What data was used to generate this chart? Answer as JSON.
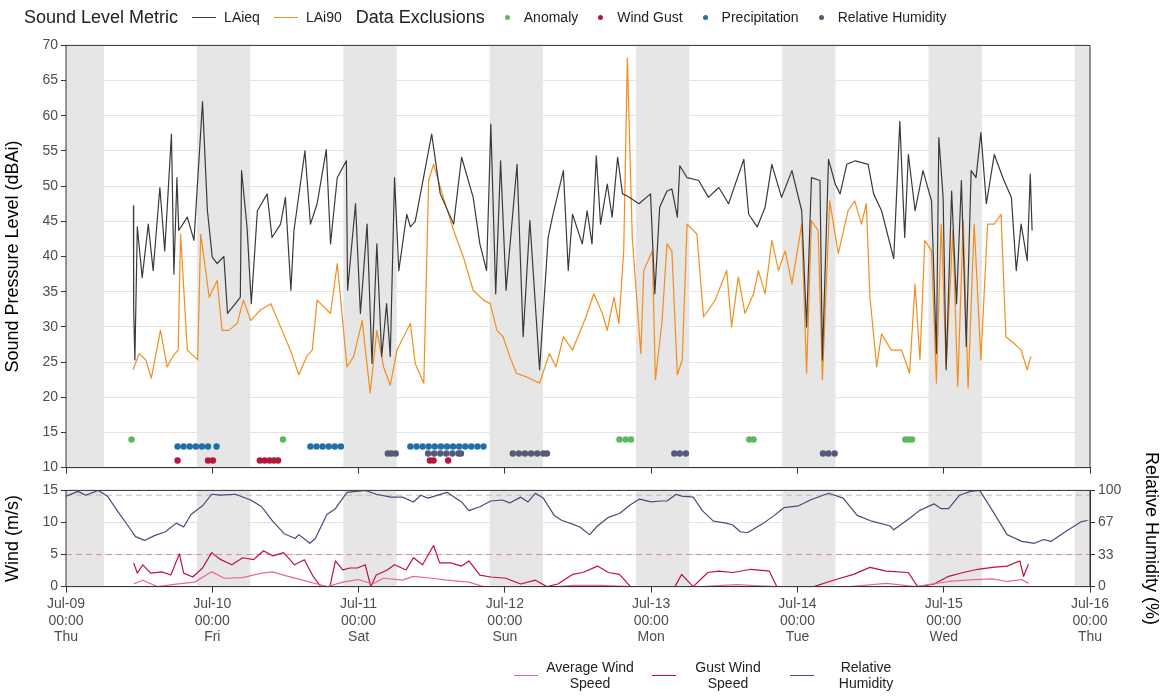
{
  "chart_data": [
    {
      "type": "line",
      "ylabel": "Sound Pressure Level (dBAi)",
      "legend_title": "Sound Level Metric",
      "annotations": [
        "Data Exclusions"
      ],
      "legend": "top",
      "grid": "y",
      "tick_labels": "y",
      "marker": "none",
      "xlim": [
        "--07-09",
        "--07-16"
      ],
      "xticks": [
        {
          "value": "--07-09",
          "label": null
        },
        {
          "value": "--07-10",
          "label": null
        },
        {
          "value": "--07-11",
          "label": null
        },
        {
          "value": "--07-12",
          "label": null
        },
        {
          "value": "--07-13",
          "label": null
        },
        {
          "value": "--07-14",
          "label": null
        },
        {
          "value": "--07-15",
          "label": null
        },
        {
          "value": "--07-16",
          "label": null
        }
      ],
      "ylim": [
        10,
        70
      ],
      "yticks": [
        10,
        15,
        20,
        25,
        30,
        35,
        40,
        45,
        50,
        55,
        60,
        65,
        70
      ],
      "bands": [
        {
          "axis": "x",
          "from": "--07-09T00:00",
          "to": "--07-09T06:15",
          "color": "#e6e6e6"
        },
        {
          "axis": "x",
          "from": "--07-09T21:30",
          "to": "--07-10T06:15",
          "color": "#e6e6e6"
        },
        {
          "axis": "x",
          "from": "--07-10T21:30",
          "to": "--07-11T06:15",
          "color": "#e6e6e6"
        },
        {
          "axis": "x",
          "from": "--07-11T21:30",
          "to": "--07-12T06:15",
          "color": "#e6e6e6"
        },
        {
          "axis": "x",
          "from": "--07-12T21:30",
          "to": "--07-13T06:15",
          "color": "#e6e6e6"
        },
        {
          "axis": "x",
          "from": "--07-13T21:30",
          "to": "--07-14T06:15",
          "color": "#e6e6e6"
        },
        {
          "axis": "x",
          "from": "--07-14T21:30",
          "to": "--07-15T06:15",
          "color": "#e6e6e6"
        },
        {
          "axis": "x",
          "from": "--07-15T21:30",
          "to": "--07-16T00:00",
          "color": "#e6e6e6"
        }
      ],
      "series": [
        {
          "name": "LAieq",
          "type": "line",
          "color": "#3a3a3a",
          "x": [
            "--07-09T11:04",
            "--07-09T11:06",
            "--07-09T11:18",
            "--07-09T11:42",
            "--07-09T12:30",
            "--07-09T13:30",
            "--07-09T14:18",
            "--07-09T15:24",
            "--07-09T16:12",
            "--07-09T17:18",
            "--07-09T17:42",
            "--07-09T18:12",
            "--07-09T18:30",
            "--07-09T19:54",
            "--07-09T21:00",
            "--07-09T22:24",
            "--07-09T23:12",
            "--07-10T00:00",
            "--07-10T00:48",
            "--07-10T01:54",
            "--07-10T02:30",
            "--07-10T04:36",
            "--07-10T04:48",
            "--07-10T05:42",
            "--07-10T06:24",
            "--07-10T07:24",
            "--07-10T09:00",
            "--07-10T09:48",
            "--07-10T11:12",
            "--07-10T12:00",
            "--07-10T12:54",
            "--07-10T13:24",
            "--07-10T15:12",
            "--07-10T16:06",
            "--07-10T17:12",
            "--07-10T18:42",
            "--07-10T19:24",
            "--07-10T20:30",
            "--07-10T22:00",
            "--07-10T22:12",
            "--07-10T23:30",
            "--07-11T00:18",
            "--07-11T01:24",
            "--07-11T02:12",
            "--07-11T03:00",
            "--07-11T03:48",
            "--07-11T04:36",
            "--07-11T05:12",
            "--07-11T05:54",
            "--07-11T06:36",
            "--07-11T07:54",
            "--07-11T08:30",
            "--07-11T09:18",
            "--07-11T12:00",
            "--07-11T13:24",
            "--07-11T15:36",
            "--07-11T16:54",
            "--07-11T18:48",
            "--07-11T19:54",
            "--07-11T21:00",
            "--07-11T21:42",
            "--07-11T22:30",
            "--07-11T23:18",
            "--07-12T00:12",
            "--07-12T02:00",
            "--07-12T03:00",
            "--07-12T04:06",
            "--07-12T05:42",
            "--07-12T07:06",
            "--07-12T07:48",
            "--07-12T09:36",
            "--07-12T10:24",
            "--07-12T11:06",
            "--07-12T12:42",
            "--07-12T13:30",
            "--07-12T14:18",
            "--07-12T15:00",
            "--07-12T15:42",
            "--07-12T16:48",
            "--07-12T17:36",
            "--07-12T18:30",
            "--07-12T19:18",
            "--07-12T20:06",
            "--07-12T22:00",
            "--07-12T23:54",
            "--07-13T00:36",
            "--07-13T01:24",
            "--07-13T02:36",
            "--07-13T03:24",
            "--07-13T04:18",
            "--07-13T04:42",
            "--07-13T05:54",
            "--07-13T07:48",
            "--07-13T09:24",
            "--07-13T11:06",
            "--07-13T12:42",
            "--07-13T15:12",
            "--07-13T16:00",
            "--07-13T17:24",
            "--07-13T18:42",
            "--07-13T19:48",
            "--07-13T21:24",
            "--07-13T23:06",
            "--07-14T00:42",
            "--07-14T01:30",
            "--07-14T02:18",
            "--07-14T03:42",
            "--07-14T04:06",
            "--07-14T05:06",
            "--07-14T06:12",
            "--07-14T07:00",
            "--07-14T08:06",
            "--07-14T09:30",
            "--07-14T11:36",
            "--07-14T12:30",
            "--07-14T13:48",
            "--07-14T15:48",
            "--07-14T16:48",
            "--07-14T17:36",
            "--07-14T18:12",
            "--07-14T19:18",
            "--07-14T20:36",
            "--07-14T22:00",
            "--07-14T22:48",
            "--07-14T23:12",
            "--07-14T23:54",
            "--07-15T00:24",
            "--07-15T01:18",
            "--07-15T02:06",
            "--07-15T02:54",
            "--07-15T03:42",
            "--07-15T04:30",
            "--07-15T05:18",
            "--07-15T06:06",
            "--07-15T07:00",
            "--07-15T08:18",
            "--07-15T09:42",
            "--07-15T11:06",
            "--07-15T11:54",
            "--07-15T12:42",
            "--07-15T13:42",
            "--07-15T14:12",
            "--07-15T14:30"
          ],
          "values": [
            47.2,
            32.6,
            25.3,
            44.2,
            37,
            44.6,
            38,
            49.8,
            40.8,
            57.4,
            37.5,
            51.2,
            43.7,
            45.6,
            42.3,
            62,
            46.5,
            39.9,
            39,
            40,
            31.9,
            34.2,
            52.2,
            44.2,
            33.3,
            46.5,
            48.9,
            42.7,
            44.6,
            48.4,
            35.2,
            43.7,
            55,
            44.6,
            47.5,
            55.2,
            41.8,
            51.2,
            53.6,
            35.2,
            47.5,
            31.9,
            44.6,
            24.8,
            41.8,
            25.8,
            33.3,
            25.8,
            51.2,
            38,
            46,
            44.2,
            45,
            57.4,
            48.9,
            44.6,
            54.1,
            48.4,
            41.8,
            38,
            58.8,
            34.7,
            53.6,
            35.2,
            53.1,
            28.6,
            45.1,
            23.9,
            42.7,
            45.6,
            52.2,
            38,
            46,
            41.8,
            46.5,
            41.8,
            54.3,
            44.6,
            50.3,
            45.6,
            54.1,
            48.9,
            48.6,
            47.5,
            48.9,
            34.7,
            47,
            49.3,
            49.6,
            45.6,
            52.9,
            51.2,
            50.8,
            48.4,
            49.8,
            47.5,
            53.8,
            46,
            44.2,
            47,
            53.1,
            48.4,
            52.2,
            46.5,
            30,
            51.2,
            50.8,
            25.3,
            53.8,
            50.3,
            48.9,
            53.1,
            53.6,
            53.1,
            48.9,
            46.5,
            39.7,
            59.2,
            42.7,
            54.5,
            46.5,
            52.2,
            47.9,
            26.2,
            56.9,
            48.4,
            23.9,
            49.3,
            33.3,
            50.8,
            27.2,
            52.2,
            51.2,
            57.6,
            47.5,
            54.5,
            51.2,
            48.4,
            38,
            44.6,
            39.4,
            51.7,
            43.7
          ]
        },
        {
          "name": "LAi90",
          "type": "line",
          "color": "#f28e1c",
          "x": [
            "--07-09T11:00",
            "--07-09T12:00",
            "--07-09T13:06",
            "--07-09T14:00",
            "--07-09T15:30",
            "--07-09T16:36",
            "--07-09T17:30",
            "--07-09T18:24",
            "--07-09T18:48",
            "--07-09T19:54",
            "--07-09T21:36",
            "--07-09T22:06",
            "--07-09T23:30",
            "--07-10T00:48",
            "--07-10T01:36",
            "--07-10T02:42",
            "--07-10T04:06",
            "--07-10T05:06",
            "--07-10T06:18",
            "--07-10T07:54",
            "--07-10T09:36",
            "--07-10T11:12",
            "--07-10T12:48",
            "--07-10T14:12",
            "--07-10T15:30",
            "--07-10T16:24",
            "--07-10T17:12",
            "--07-10T19:24",
            "--07-10T20:30",
            "--07-10T22:06",
            "--07-10T23:12",
            "--07-11T00:36",
            "--07-11T01:54",
            "--07-11T03:00",
            "--07-11T04:06",
            "--07-11T05:12",
            "--07-11T06:18",
            "--07-11T08:30",
            "--07-11T09:18",
            "--07-11T10:42",
            "--07-11T11:30",
            "--07-11T12:18",
            "--07-11T13:54",
            "--07-11T15:36",
            "--07-11T17:12",
            "--07-11T18:48",
            "--07-11T20:30",
            "--07-11T21:36",
            "--07-11T22:42",
            "--07-11T23:42",
            "--07-12T00:48",
            "--07-12T01:54",
            "--07-12T03:30",
            "--07-12T05:42",
            "--07-12T07:18",
            "--07-12T08:24",
            "--07-12T09:36",
            "--07-12T11:06",
            "--07-12T13:18",
            "--07-12T14:36",
            "--07-12T16:00",
            "--07-12T16:48",
            "--07-12T17:54",
            "--07-12T18:42",
            "--07-12T19:30",
            "--07-12T20:06",
            "--07-12T20:54",
            "--07-12T22:18",
            "--07-12T22:48",
            "--07-13T00:12",
            "--07-13T00:42",
            "--07-13T01:48",
            "--07-13T02:36",
            "--07-13T03:24",
            "--07-13T04:18",
            "--07-13T05:06",
            "--07-13T05:54",
            "--07-13T07:30",
            "--07-13T08:36",
            "--07-13T10:30",
            "--07-13T12:24",
            "--07-13T13:12",
            "--07-13T14:18",
            "--07-13T15:24",
            "--07-13T16:48",
            "--07-13T17:36",
            "--07-13T18:42",
            "--07-13T19:48",
            "--07-13T20:54",
            "--07-13T22:00",
            "--07-13T23:06",
            "--07-14T00:42",
            "--07-14T01:30",
            "--07-14T02:18",
            "--07-14T03:24",
            "--07-14T04:06",
            "--07-14T05:18",
            "--07-14T06:42",
            "--07-14T08:18",
            "--07-14T09:24",
            "--07-14T10:30",
            "--07-14T11:18",
            "--07-14T11:54",
            "--07-14T13:00",
            "--07-14T13:48",
            "--07-14T15:24",
            "--07-14T17:06",
            "--07-14T18:24",
            "--07-14T19:18",
            "--07-14T20:06",
            "--07-14T20:54",
            "--07-14T22:00",
            "--07-14T22:48",
            "--07-14T23:36",
            "--07-15T00:24",
            "--07-15T01:30",
            "--07-15T02:18",
            "--07-15T03:12",
            "--07-15T04:00",
            "--07-15T05:00",
            "--07-15T06:06",
            "--07-15T07:12",
            "--07-15T08:18",
            "--07-15T09:24",
            "--07-15T10:12",
            "--07-15T11:36",
            "--07-15T12:42",
            "--07-15T13:42",
            "--07-15T14:18"
          ],
          "values": [
            23.9,
            26.2,
            25.3,
            22.7,
            29.5,
            24.3,
            25.8,
            26.7,
            43.2,
            26.7,
            25.3,
            43.2,
            34.2,
            36.6,
            29.5,
            29.5,
            30.5,
            33.8,
            30.9,
            32.4,
            33.3,
            30,
            26.7,
            23.2,
            25.8,
            26.7,
            33.8,
            31.9,
            39,
            24.3,
            25.8,
            30.9,
            20.6,
            29.5,
            24.3,
            21.7,
            26.7,
            30.5,
            24.8,
            22,
            50.8,
            53.1,
            48.4,
            43.7,
            39.9,
            35.2,
            33.8,
            33.3,
            29.5,
            28.6,
            25.8,
            23.4,
            22.9,
            22,
            26.2,
            24.3,
            28.6,
            26.7,
            31.4,
            34.7,
            31.9,
            29.5,
            34.2,
            30.5,
            40.8,
            68.2,
            42.7,
            26.2,
            38,
            40.8,
            22.5,
            30.9,
            41.8,
            40.8,
            23.2,
            25.3,
            44.6,
            43.2,
            31.4,
            33.8,
            38,
            30,
            37.1,
            31.9,
            34.7,
            38,
            34.7,
            42.3,
            38,
            40.8,
            36.1,
            44.6,
            23.4,
            45.1,
            43.7,
            22.5,
            47.9,
            40.4,
            46.5,
            47.9,
            44.6,
            47.5,
            34.2,
            24.3,
            29,
            26.7,
            26.7,
            23.4,
            36.1,
            25.3,
            42.3,
            40.8,
            22,
            44.6,
            24.3,
            43.7,
            21.5,
            45.1,
            21.3,
            44.6,
            25.3,
            44.6,
            44.6,
            46,
            28.6,
            27.6,
            26.7,
            23.9,
            25.8
          ]
        },
        {
          "name": "Anomaly",
          "type": "scatter",
          "marker": "circle",
          "color": "#5cb85c",
          "x": [
            "--07-09T10:45",
            "--07-10T11:36",
            "--07-12T18:48",
            "--07-12T19:48",
            "--07-12T20:42",
            "--07-13T16:06",
            "--07-13T16:48",
            "--07-14T17:42",
            "--07-14T18:18",
            "--07-14T18:48"
          ],
          "values": [
            14,
            14,
            14,
            14,
            14,
            14,
            14,
            14,
            14,
            14
          ]
        },
        {
          "name": "Wind Gust",
          "type": "scatter",
          "marker": "circle",
          "color": "#b5173d",
          "x": [
            "--07-09T18:18",
            "--07-09T23:18",
            "--07-10T00:06",
            "--07-10T07:48",
            "--07-10T08:36",
            "--07-10T09:24",
            "--07-10T10:06",
            "--07-10T10:48",
            "--07-11T11:42",
            "--07-11T12:18",
            "--07-11T14:42"
          ],
          "values": [
            11,
            11,
            11,
            11,
            11,
            11,
            11,
            11,
            11,
            11,
            11
          ]
        },
        {
          "name": "Precipitation",
          "type": "scatter",
          "marker": "circle",
          "color": "#1f6fa8",
          "x": [
            "--07-09T18:18",
            "--07-09T19:18",
            "--07-09T20:18",
            "--07-09T21:18",
            "--07-09T22:18",
            "--07-09T23:18",
            "--07-10T00:42",
            "--07-10T16:06",
            "--07-10T17:06",
            "--07-10T18:06",
            "--07-10T19:06",
            "--07-10T20:06",
            "--07-10T21:06",
            "--07-11T08:30",
            "--07-11T09:30",
            "--07-11T10:30",
            "--07-11T11:30",
            "--07-11T12:30",
            "--07-11T13:30",
            "--07-11T14:30",
            "--07-11T15:30",
            "--07-11T16:30",
            "--07-11T17:30",
            "--07-11T18:30",
            "--07-11T19:30",
            "--07-11T20:30"
          ],
          "values": [
            13,
            13,
            13,
            13,
            13,
            13,
            13,
            13,
            13,
            13,
            13,
            13,
            13,
            13,
            13,
            13,
            13,
            13,
            13,
            13,
            13,
            13,
            13,
            13,
            13,
            13
          ]
        },
        {
          "name": "Relative Humidity",
          "type": "scatter",
          "marker": "circle",
          "color": "#555a78",
          "x": [
            "--07-11T04:48",
            "--07-11T05:24",
            "--07-11T06:06",
            "--07-11T11:24",
            "--07-11T12:24",
            "--07-11T13:24",
            "--07-11T14:24",
            "--07-11T15:24",
            "--07-11T16:24",
            "--07-11T16:48",
            "--07-12T01:18",
            "--07-12T02:18",
            "--07-12T03:18",
            "--07-12T04:18",
            "--07-12T05:18",
            "--07-12T06:18",
            "--07-12T06:54",
            "--07-13T03:48",
            "--07-13T04:42",
            "--07-13T05:42",
            "--07-14T04:12",
            "--07-14T05:06",
            "--07-14T06:06"
          ],
          "values": [
            12,
            12,
            12,
            12,
            12,
            12,
            12,
            12,
            12,
            12,
            12,
            12,
            12,
            12,
            12,
            12,
            12,
            12,
            12,
            12,
            12,
            12,
            12
          ]
        }
      ]
    },
    {
      "type": "line",
      "ylabel": "Wind (m/s)",
      "y2label": "Relative Humidity (%)",
      "legend": "bottom",
      "grid": "y",
      "marker": "none",
      "xlim": [
        "--07-09",
        "--07-16"
      ],
      "xticks": [
        {
          "value": "--07-09",
          "label": "Jul-09\n00:00\nThu"
        },
        {
          "value": "--07-10",
          "label": "Jul-10\n00:00\nFri"
        },
        {
          "value": "--07-11",
          "label": "Jul-11\n00:00\nSat"
        },
        {
          "value": "--07-12",
          "label": "Jul-12\n00:00\nSun"
        },
        {
          "value": "--07-13",
          "label": "Jul-13\n00:00\nMon"
        },
        {
          "value": "--07-14",
          "label": "Jul-14\n00:00\nTue"
        },
        {
          "value": "--07-15",
          "label": "Jul-15\n00:00\nWed"
        },
        {
          "value": "--07-16",
          "label": "Jul-16\n00:00\nThu"
        }
      ],
      "ylim": [
        0,
        15
      ],
      "yticks": [
        0,
        5,
        10,
        15
      ],
      "y2lim": [
        0,
        100
      ],
      "y2ticks": [
        0,
        33,
        67,
        100
      ],
      "bands": [
        {
          "axis": "x",
          "from": "--07-09T00:00",
          "to": "--07-09T06:15",
          "color": "#e6e6e6"
        },
        {
          "axis": "x",
          "from": "--07-09T21:30",
          "to": "--07-10T06:15",
          "color": "#e6e6e6"
        },
        {
          "axis": "x",
          "from": "--07-10T21:30",
          "to": "--07-11T06:15",
          "color": "#e6e6e6"
        },
        {
          "axis": "x",
          "from": "--07-11T21:30",
          "to": "--07-12T06:15",
          "color": "#e6e6e6"
        },
        {
          "axis": "x",
          "from": "--07-12T21:30",
          "to": "--07-13T06:15",
          "color": "#e6e6e6"
        },
        {
          "axis": "x",
          "from": "--07-13T21:30",
          "to": "--07-14T06:15",
          "color": "#e6e6e6"
        },
        {
          "axis": "x",
          "from": "--07-14T21:30",
          "to": "--07-15T06:15",
          "color": "#e6e6e6"
        },
        {
          "axis": "x",
          "from": "--07-15T21:30",
          "to": "--07-16T00:00",
          "color": "#e6e6e6"
        }
      ],
      "ref_lines": [
        {
          "axis": "y",
          "value": 5,
          "color": "#d98c9c",
          "line_style": "dashed"
        },
        {
          "axis": "y2",
          "value": 95,
          "color": "#bbbbbb",
          "line_style": "dashed"
        }
      ],
      "series": [
        {
          "name": "Average Wind Speed",
          "color": "#f0639a",
          "x": [
            "--07-09T11:06",
            "--07-09T12:36",
            "--07-09T15:00",
            "--07-09T18:06",
            "--07-09T21:06",
            "--07-09T23:54",
            "--07-10T02:00",
            "--07-10T05:00",
            "--07-10T08:06",
            "--07-10T09:54",
            "--07-10T11:42",
            "--07-10T14:48",
            "--07-10T17:12",
            "--07-10T18:54",
            "--07-10T21:24",
            "--07-10T23:54",
            "--07-11T02:18",
            "--07-11T04:06",
            "--07-11T07:12",
            "--07-11T09:00",
            "--07-11T12:00",
            "--07-11T14:30",
            "--07-11T18:06",
            "--07-11T20:30",
            "--07-12T02:36",
            "--07-12T08:42",
            "--07-12T11:06",
            "--07-12T15:48",
            "--07-12T20:36",
            "--07-13T08:06",
            "--07-13T14:00",
            "--07-13T20:36",
            "--07-14T08:36",
            "--07-14T14:36",
            "--07-14T19:24",
            "--07-15T00:48",
            "--07-15T05:00",
            "--07-15T08:00",
            "--07-15T10:24",
            "--07-15T12:48",
            "--07-15T13:54"
          ],
          "values": [
            0.4,
            1,
            0,
            0.4,
            0.7,
            2.3,
            1.3,
            1.4,
            2.1,
            2.3,
            1.8,
            1,
            0.4,
            0,
            0.7,
            1.1,
            0.4,
            1.3,
            1,
            1.6,
            1.3,
            1,
            0.7,
            0,
            0,
            0,
            0.2,
            0.2,
            0,
            0,
            0.3,
            0,
            0,
            0.5,
            0,
            0.8,
            1.1,
            1.2,
            0.8,
            1.1,
            0.5
          ]
        },
        {
          "name": "Gust Wind Speed",
          "color": "#c0103a",
          "x": [
            "--07-09T11:06",
            "--07-09T11:42",
            "--07-09T12:36",
            "--07-09T13:54",
            "--07-09T15:42",
            "--07-09T17:12",
            "--07-09T18:36",
            "--07-09T19:18",
            "--07-09T20:48",
            "--07-09T22:24",
            "--07-09T23:54",
            "--07-10T01:24",
            "--07-10T03:12",
            "--07-10T05:00",
            "--07-10T06:48",
            "--07-10T08:24",
            "--07-10T09:54",
            "--07-10T11:42",
            "--07-10T13:30",
            "--07-10T15:06",
            "--07-10T16:36",
            "--07-10T17:48",
            "--07-10T19:18",
            "--07-10T20:12",
            "--07-10T21:24",
            "--07-10T22:36",
            "--07-10T23:48",
            "--07-11T01:06",
            "--07-11T02:00",
            "--07-11T02:54",
            "--07-11T04:42",
            "--07-11T05:54",
            "--07-11T07:48",
            "--07-11T09:00",
            "--07-11T10:30",
            "--07-11T12:18",
            "--07-11T13:18",
            "--07-11T15:06",
            "--07-11T16:54",
            "--07-11T18:06",
            "--07-11T19:54",
            "--07-11T21:42",
            "--07-12T00:12",
            "--07-12T02:36",
            "--07-12T05:00",
            "--07-12T06:54",
            "--07-12T08:42",
            "--07-12T11:06",
            "--07-12T12:48",
            "--07-12T15:12",
            "--07-12T17:00",
            "--07-12T18:48",
            "--07-12T20:36",
            "--07-12T23:06",
            "--07-13T01:30",
            "--07-13T03:54",
            "--07-13T05:00",
            "--07-13T06:54",
            "--07-13T09:18",
            "--07-13T11:06",
            "--07-13T13:24",
            "--07-13T16:24",
            "--07-13T19:24",
            "--07-13T20:36",
            "--07-13T23:00",
            "--07-14T02:42",
            "--07-14T06:18",
            "--07-14T09:12",
            "--07-14T11:54",
            "--07-14T14:36",
            "--07-14T18:12",
            "--07-14T19:42",
            "--07-14T22:24",
            "--07-15T00:48",
            "--07-15T03:12",
            "--07-15T05:36",
            "--07-15T08:00",
            "--07-15T10:24",
            "--07-15T12:30",
            "--07-15T13:06",
            "--07-15T13:54"
          ],
          "values": [
            3.7,
            2.1,
            3.4,
            2.1,
            2.3,
            1.8,
            5.1,
            2.1,
            1.5,
            2.9,
            5.3,
            4.2,
            3.4,
            4.5,
            4.2,
            5.6,
            4.8,
            5.3,
            3.4,
            4.2,
            1.5,
            0,
            0,
            4,
            2.6,
            2.9,
            2.9,
            3.4,
            0,
            1.8,
            2.6,
            3.4,
            2.6,
            4.5,
            3.4,
            6.4,
            3.7,
            3.7,
            3.2,
            4,
            1.8,
            1.5,
            1.3,
            0.4,
            1,
            0,
            0.4,
            1.9,
            2.2,
            3.2,
            2.2,
            1.9,
            0,
            0,
            0,
            0,
            1.9,
            0,
            2.2,
            2.4,
            2.2,
            2.7,
            2.4,
            0,
            0,
            0,
            1.1,
            1.9,
            3,
            2.4,
            2.2,
            0,
            0.4,
            1.6,
            2.2,
            2.7,
            3,
            3.2,
            4,
            1.6,
            3.5
          ]
        },
        {
          "name": "Relative Humidity",
          "color": "#4a4a7a",
          "axis": "y2",
          "x": [
            "--07-09T00:00",
            "--07-09T02:00",
            "--07-09T03:12",
            "--07-09T05:18",
            "--07-09T06:48",
            "--07-09T08:24",
            "--07-09T10:12",
            "--07-09T11:24",
            "--07-09T12:54",
            "--07-09T14:30",
            "--07-09T16:18",
            "--07-09T18:06",
            "--07-09T19:18",
            "--07-09T20:30",
            "--07-09T22:24",
            "--07-09T23:54",
            "--07-10T01:24",
            "--07-10T03:48",
            "--07-10T06:18",
            "--07-10T08:06",
            "--07-10T09:54",
            "--07-10T11:48",
            "--07-10T13:36",
            "--07-10T14:12",
            "--07-10T16:00",
            "--07-10T16:54",
            "--07-10T18:48",
            "--07-10T20:12",
            "--07-10T22:06",
            "--07-11T01:06",
            "--07-11T02:54",
            "--07-11T05:18",
            "--07-11T07:12",
            "--07-11T09:00",
            "--07-11T10:12",
            "--07-11T11:24",
            "--07-11T14:30",
            "--07-11T16:54",
            "--07-11T18:06",
            "--07-11T19:54",
            "--07-11T21:42",
            "--07-11T23:36",
            "--07-12T00:48",
            "--07-12T02:36",
            "--07-12T03:48",
            "--07-12T05:00",
            "--07-12T06:18",
            "--07-12T08:06",
            "--07-12T09:18",
            "--07-12T11:06",
            "--07-12T12:18",
            "--07-12T13:54",
            "--07-12T15:12",
            "--07-12T17:00",
            "--07-12T18:48",
            "--07-12T20:36",
            "--07-12T22:06",
            "--07-13T00:00",
            "--07-13T01:30",
            "--07-13T02:36",
            "--07-13T04:06",
            "--07-13T05:00",
            "--07-13T06:54",
            "--07-13T08:24",
            "--07-13T10:12",
            "--07-13T12:18",
            "--07-13T13:24",
            "--07-13T14:36",
            "--07-13T15:48",
            "--07-13T18:12",
            "--07-13T20:00",
            "--07-13T21:48",
            "--07-14T00:12",
            "--07-14T02:06",
            "--07-14T05:06",
            "--07-14T07:30",
            "--07-14T09:48",
            "--07-14T12:12",
            "--07-14T15:12",
            "--07-14T15:48",
            "--07-14T18:12",
            "--07-14T20:00",
            "--07-14T22:24",
            "--07-14T23:36",
            "--07-15T00:48",
            "--07-15T02:36",
            "--07-15T04:24",
            "--07-15T05:54",
            "--07-15T08:00",
            "--07-15T10:24",
            "--07-15T12:48",
            "--07-15T14:54",
            "--07-15T16:24",
            "--07-15T17:36",
            "--07-15T19:42",
            "--07-15T22:24",
            "--07-15T23:36"
          ],
          "values": [
            94,
            99,
            95,
            100,
            94,
            79,
            63,
            52,
            48,
            53,
            57,
            66,
            62,
            75,
            84,
            96,
            95,
            96,
            90,
            83,
            68,
            55,
            50,
            54,
            45,
            50,
            75,
            81,
            98,
            100,
            96,
            93,
            93,
            88,
            95,
            92,
            98,
            88,
            79,
            83,
            89,
            90,
            87,
            93,
            88,
            97,
            92,
            74,
            69,
            65,
            62,
            54,
            63,
            72,
            76,
            85,
            91,
            88,
            89,
            89,
            96,
            94,
            93,
            79,
            68,
            66,
            64,
            57,
            56,
            65,
            73,
            82,
            84,
            90,
            97,
            92,
            74,
            68,
            63,
            59,
            70,
            79,
            86,
            81,
            81,
            95,
            99,
            100,
            79,
            54,
            47,
            45,
            49,
            47,
            56,
            67,
            69
          ]
        }
      ]
    }
  ]
}
